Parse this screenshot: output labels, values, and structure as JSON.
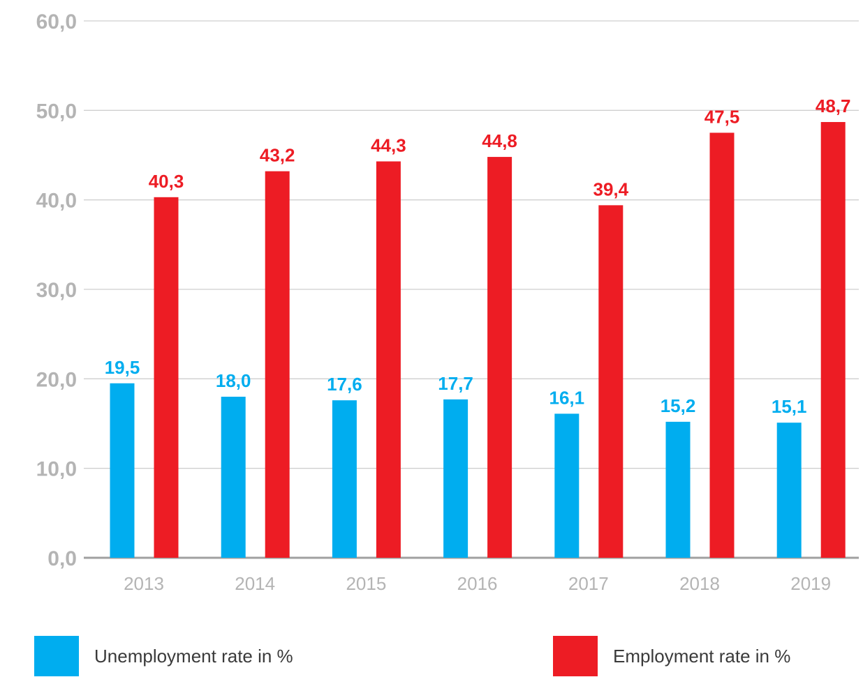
{
  "chart_data": {
    "type": "bar",
    "categories": [
      "2013",
      "2014",
      "2015",
      "2016",
      "2017",
      "2018",
      "2019"
    ],
    "series": [
      {
        "name": "Unemployment rate in %",
        "color": "#00adef",
        "values": [
          19.5,
          18.0,
          17.6,
          17.7,
          16.1,
          15.2,
          15.1
        ],
        "labels": [
          "19,5",
          "18,0",
          "17,6",
          "17,7",
          "16,1",
          "15,2",
          "15,1"
        ]
      },
      {
        "name": "Employment rate in %",
        "color": "#ed1c24",
        "values": [
          40.3,
          43.2,
          44.3,
          44.8,
          39.4,
          47.5,
          48.7
        ],
        "labels": [
          "40,3",
          "43,2",
          "44,3",
          "44,8",
          "39,4",
          "47,5",
          "48,7"
        ]
      }
    ],
    "yticks": [
      0,
      10,
      20,
      30,
      40,
      50,
      60
    ],
    "ytick_labels": [
      "0,0",
      "10,0",
      "20,0",
      "30,0",
      "40,0",
      "50,0",
      "60,0"
    ],
    "ylim": [
      0,
      60
    ],
    "grid": true,
    "legend_position": "bottom",
    "title": "",
    "xlabel": "",
    "ylabel": ""
  },
  "legend": {
    "unemployment_label": "Unemployment rate in %",
    "employment_label": "Employment rate in %"
  }
}
